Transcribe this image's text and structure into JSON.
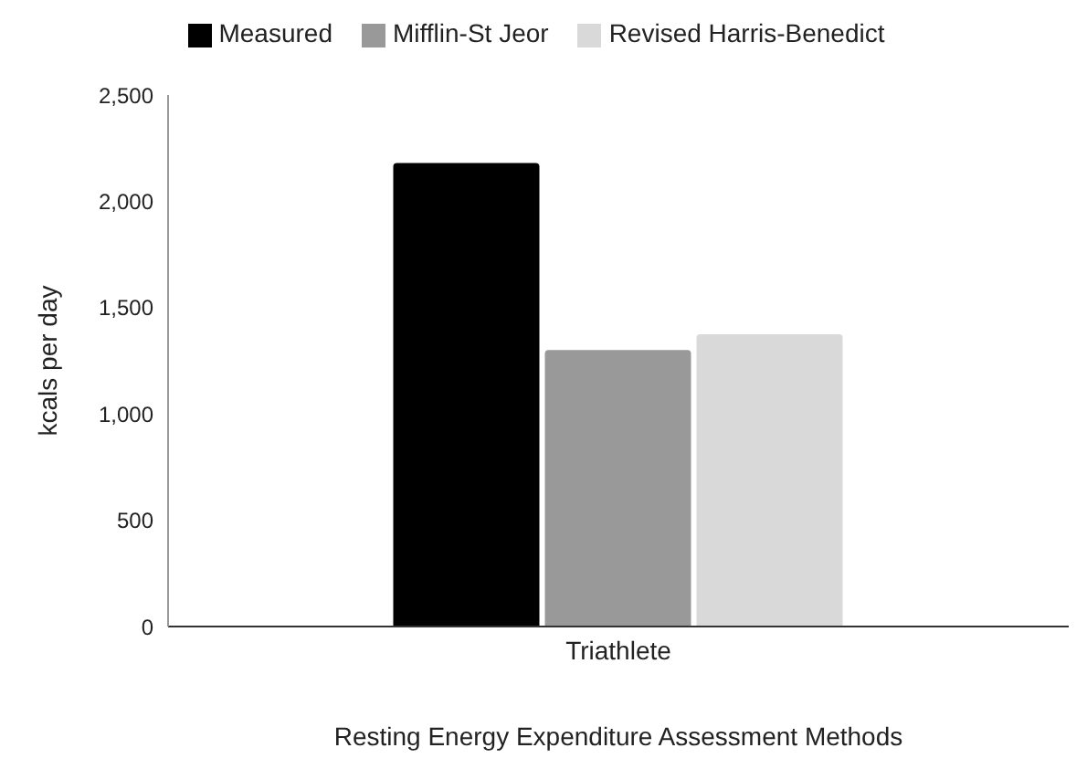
{
  "chart_data": {
    "type": "bar",
    "xlabel": "Resting Energy Expenditure Assessment Methods",
    "ylabel": "kcals per day",
    "categories": [
      "Triathlete"
    ],
    "series": [
      {
        "name": "Measured",
        "color": "#000000",
        "values": [
          2180
        ]
      },
      {
        "name": "Mifflin-St Jeor",
        "color": "#999999",
        "values": [
          1300
        ]
      },
      {
        "name": "Revised Harris-Benedict",
        "color": "#d9d9d9",
        "values": [
          1375
        ]
      }
    ],
    "ylim": [
      0,
      2500
    ],
    "yticks": [
      {
        "value": 0,
        "label": "0"
      },
      {
        "value": 500,
        "label": "500"
      },
      {
        "value": 1000,
        "label": "1,000"
      },
      {
        "value": 1500,
        "label": "1,500"
      },
      {
        "value": 2000,
        "label": "2,000"
      },
      {
        "value": 2500,
        "label": "2,500"
      }
    ],
    "grid": false,
    "legend": "top"
  }
}
